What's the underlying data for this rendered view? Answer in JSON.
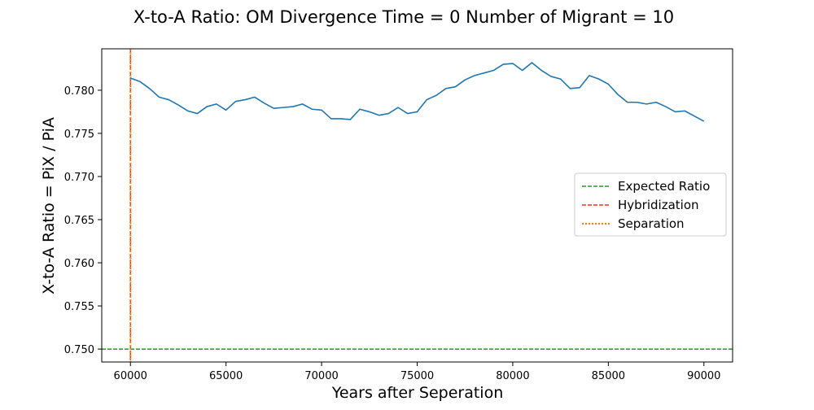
{
  "chart_data": {
    "type": "line",
    "title": "X-to-A Ratio: OM Divergence Time = 0  Number of Migrant = 10",
    "xlabel": "Years after Seperation",
    "ylabel": "X-to-A Ratio = PiX / PiA",
    "xlim": [
      58500,
      91500
    ],
    "ylim": [
      0.7485,
      0.7848
    ],
    "xticks": [
      60000,
      65000,
      70000,
      75000,
      80000,
      85000,
      90000
    ],
    "xtick_labels": [
      "60000",
      "65000",
      "70000",
      "75000",
      "80000",
      "85000",
      "90000"
    ],
    "yticks": [
      0.75,
      0.755,
      0.76,
      0.765,
      0.77,
      0.775,
      0.78
    ],
    "ytick_labels": [
      "0.750",
      "0.755",
      "0.760",
      "0.765",
      "0.770",
      "0.775",
      "0.780"
    ],
    "grid": false,
    "legend_position": "center-right",
    "series": [
      {
        "color": "#1f77b4",
        "style": "solid",
        "x": [
          60000,
          60500,
          61000,
          61500,
          62000,
          62500,
          63000,
          63500,
          64000,
          64500,
          65000,
          65500,
          66000,
          66500,
          67000,
          67500,
          68000,
          68500,
          69000,
          69500,
          70000,
          70500,
          71000,
          71500,
          72000,
          72500,
          73000,
          73500,
          74000,
          74500,
          75000,
          75500,
          76000,
          76500,
          77000,
          77500,
          78000,
          78500,
          79000,
          79500,
          80000,
          80500,
          81000,
          81500,
          82000,
          82500,
          83000,
          83500,
          84000,
          84500,
          85000,
          85500,
          86000,
          86500,
          87000,
          87500,
          88000,
          88500,
          89000,
          89500,
          90000
        ],
        "y": [
          0.7814,
          0.781,
          0.7802,
          0.7792,
          0.7789,
          0.7783,
          0.7776,
          0.7773,
          0.7781,
          0.7784,
          0.7777,
          0.7787,
          0.7789,
          0.7792,
          0.7785,
          0.7779,
          0.778,
          0.7781,
          0.7784,
          0.7778,
          0.7777,
          0.7767,
          0.7767,
          0.7766,
          0.7778,
          0.7775,
          0.7771,
          0.7773,
          0.778,
          0.7773,
          0.7775,
          0.7789,
          0.7794,
          0.7802,
          0.7804,
          0.7812,
          0.7817,
          0.782,
          0.7823,
          0.783,
          0.7831,
          0.7823,
          0.7832,
          0.7823,
          0.7816,
          0.7813,
          0.7802,
          0.7803,
          0.7817,
          0.7813,
          0.7807,
          0.7795,
          0.7786,
          0.7786,
          0.7784,
          0.7786,
          0.7781,
          0.7775,
          0.7776,
          0.777,
          0.7764
        ]
      }
    ],
    "reference_lines": [
      {
        "name": "Expected Ratio",
        "orientation": "horizontal",
        "value": 0.75,
        "color": "#008000",
        "style": "dashed"
      },
      {
        "name": "Hybridization",
        "orientation": "vertical",
        "value": 60000,
        "color": "#ff0000",
        "style": "dashed"
      },
      {
        "name": "Separation",
        "orientation": "vertical",
        "value": 60000,
        "color": "#ff7f0e",
        "style": "dotted"
      }
    ],
    "legend": [
      {
        "label": "Expected Ratio",
        "color": "#008000",
        "style": "dashed"
      },
      {
        "label": "Hybridization",
        "color": "#ff0000",
        "style": "dashed"
      },
      {
        "label": "Separation",
        "color": "#ff7f0e",
        "style": "dotted"
      }
    ]
  }
}
